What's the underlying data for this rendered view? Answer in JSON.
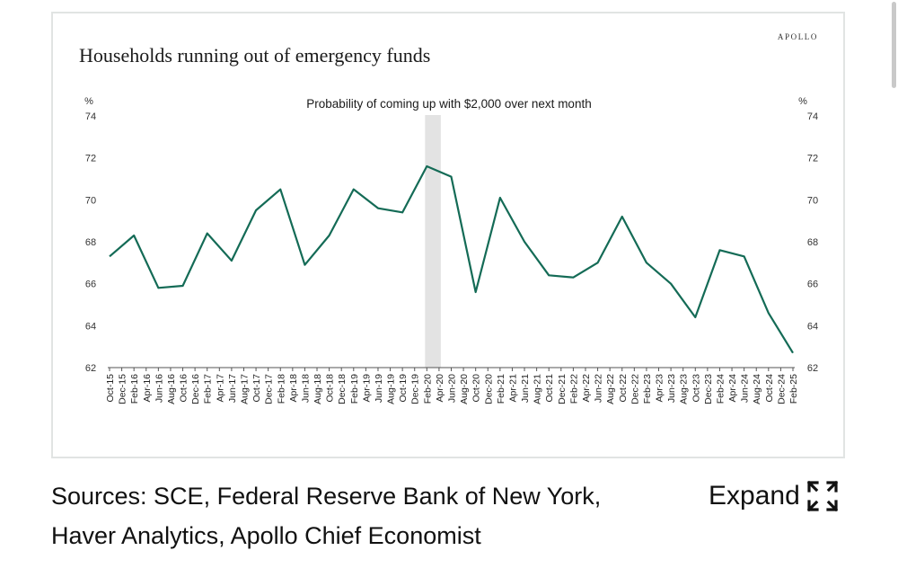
{
  "brand": "APOLLO",
  "chart_data": {
    "type": "line",
    "title": "Households running out of emergency funds",
    "subtitle": "Probability of coming up with $2,000 over next month",
    "y_unit_left": "%",
    "y_unit_right": "%",
    "ylim": [
      62,
      74
    ],
    "yticks": [
      62,
      64,
      66,
      68,
      70,
      72,
      74
    ],
    "x": [
      "Oct-15",
      "Dec-15",
      "Feb-16",
      "Apr-16",
      "Jun-16",
      "Aug-16",
      "Oct-16",
      "Dec-16",
      "Feb-17",
      "Apr-17",
      "Jun-17",
      "Aug-17",
      "Oct-17",
      "Dec-17",
      "Feb-18",
      "Apr-18",
      "Jun-18",
      "Aug-18",
      "Oct-18",
      "Dec-18",
      "Feb-19",
      "Apr-19",
      "Jun-19",
      "Aug-19",
      "Oct-19",
      "Dec-19",
      "Feb-20",
      "Apr-20",
      "Jun-20",
      "Aug-20",
      "Oct-20",
      "Dec-20",
      "Feb-21",
      "Apr-21",
      "Jun-21",
      "Aug-21",
      "Oct-21",
      "Dec-21",
      "Feb-22",
      "Apr-22",
      "Jun-22",
      "Aug-22",
      "Oct-22",
      "Dec-22",
      "Feb-23",
      "Apr-23",
      "Jun-23",
      "Aug-23",
      "Oct-23",
      "Dec-23",
      "Feb-24",
      "Apr-24",
      "Jun-24",
      "Aug-24",
      "Oct-24",
      "Dec-24",
      "Feb-25"
    ],
    "series": [
      {
        "points": [
          [
            "Oct-15",
            67.3
          ],
          [
            "Feb-16",
            68.3
          ],
          [
            "Jun-16",
            65.8
          ],
          [
            "Oct-16",
            65.9
          ],
          [
            "Feb-17",
            68.4
          ],
          [
            "Jun-17",
            67.1
          ],
          [
            "Oct-17",
            69.5
          ],
          [
            "Feb-18",
            70.5
          ],
          [
            "Jun-18",
            66.9
          ],
          [
            "Oct-18",
            68.3
          ],
          [
            "Feb-19",
            70.5
          ],
          [
            "Jun-19",
            69.6
          ],
          [
            "Oct-19",
            69.4
          ],
          [
            "Feb-20",
            71.6
          ],
          [
            "Jun-20",
            71.1
          ],
          [
            "Oct-20",
            65.6
          ],
          [
            "Feb-21",
            70.1
          ],
          [
            "Jun-21",
            68.0
          ],
          [
            "Oct-21",
            66.4
          ],
          [
            "Feb-22",
            66.3
          ],
          [
            "Jun-22",
            67.0
          ],
          [
            "Oct-22",
            69.2
          ],
          [
            "Feb-23",
            67.0
          ],
          [
            "Jun-23",
            66.0
          ],
          [
            "Oct-23",
            64.4
          ],
          [
            "Feb-24",
            67.6
          ],
          [
            "Jun-24",
            67.3
          ],
          [
            "Oct-24",
            64.6
          ],
          [
            "Feb-25",
            62.7
          ]
        ],
        "color": "#146b56"
      }
    ],
    "shaded_region": {
      "from": "Feb-20",
      "to": "Apr-20",
      "color": "#e3e3e3"
    },
    "grid": false,
    "legend": "none"
  },
  "caption": {
    "line1": "Sources: SCE, Federal Reserve Bank of New York,",
    "line2": "Haver Analytics, Apollo Chief Economist"
  },
  "expand": {
    "label": "Expand",
    "icon": "expand-arrows-icon"
  }
}
